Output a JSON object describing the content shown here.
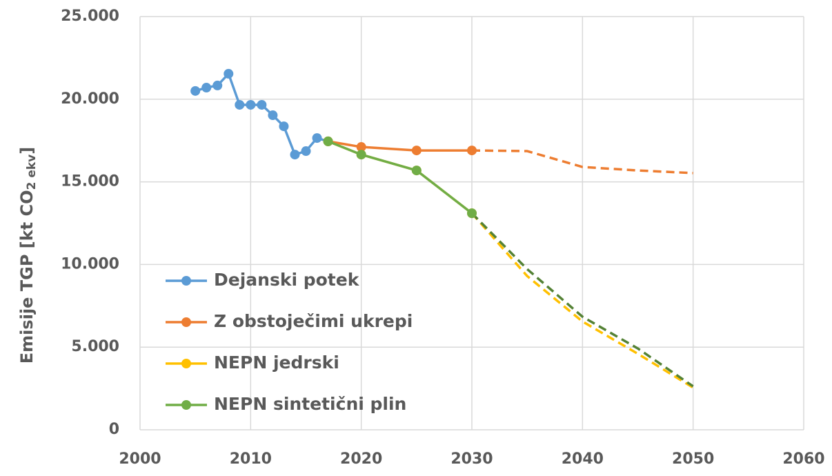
{
  "chart_data": {
    "type": "line",
    "y_label": "Emisije TGP [kt CO",
    "y_label_sub": "2 ekv",
    "y_label_end": "]",
    "x": [
      2005,
      2006,
      2007,
      2008,
      2009,
      2010,
      2011,
      2012,
      2013,
      2014,
      2015,
      2016,
      2017,
      2020,
      2025,
      2030,
      2035,
      2040,
      2045,
      2050
    ],
    "series": [
      {
        "name": "Dejanski potek",
        "color": "#5b9bd5",
        "values": [
          20500,
          20700,
          20830,
          21540,
          19660,
          19660,
          19660,
          19030,
          18360,
          16650,
          16860,
          17650,
          17450,
          null,
          null,
          null,
          null,
          null,
          null,
          null
        ],
        "projection": [
          null,
          null,
          null,
          null,
          null,
          null,
          null,
          null,
          null,
          null,
          null,
          null,
          null,
          null,
          null,
          null,
          null,
          null,
          null,
          null
        ]
      },
      {
        "name": "Z obstoječimi ukrepi",
        "color": "#ed7d31",
        "values": [
          null,
          null,
          null,
          null,
          null,
          null,
          null,
          null,
          null,
          null,
          null,
          null,
          17450,
          17110,
          16900,
          16900,
          null,
          null,
          null,
          null
        ],
        "projection": [
          null,
          null,
          null,
          null,
          null,
          null,
          null,
          null,
          null,
          null,
          null,
          null,
          null,
          null,
          null,
          16900,
          16860,
          15900,
          15690,
          15530
        ]
      },
      {
        "name": "NEPN jedrski",
        "color": "#ffc000",
        "values": [
          null,
          null,
          null,
          null,
          null,
          null,
          null,
          null,
          null,
          null,
          null,
          null,
          17450,
          16650,
          15690,
          13100,
          null,
          null,
          null,
          null
        ],
        "projection": [
          null,
          null,
          null,
          null,
          null,
          null,
          null,
          null,
          null,
          null,
          null,
          null,
          null,
          null,
          null,
          13100,
          9300,
          6550,
          4600,
          2550
        ]
      },
      {
        "name": "NEPN sintetični plin",
        "color": "#70ad47",
        "projection_color": "#548235",
        "values": [
          null,
          null,
          null,
          null,
          null,
          null,
          null,
          null,
          null,
          null,
          null,
          null,
          17450,
          16650,
          15690,
          13100,
          null,
          null,
          null,
          null
        ],
        "projection": [
          null,
          null,
          null,
          null,
          null,
          null,
          null,
          null,
          null,
          null,
          null,
          null,
          null,
          null,
          null,
          13100,
          9720,
          6840,
          4920,
          2630
        ]
      }
    ],
    "xlim": [
      2000,
      2060
    ],
    "xticks": [
      2000,
      2010,
      2020,
      2030,
      2040,
      2050,
      2060
    ],
    "ylim": [
      0,
      25000
    ],
    "yticks": [
      0,
      {
        "value": 5000,
        "label": "5.000"
      },
      {
        "value": 10000,
        "label": "10.000"
      },
      {
        "value": 15000,
        "label": "15.000"
      },
      {
        "value": 20000,
        "label": "20.000"
      },
      {
        "value": 25000,
        "label": "25.000"
      }
    ],
    "grid": true,
    "legend": "lower-left"
  }
}
